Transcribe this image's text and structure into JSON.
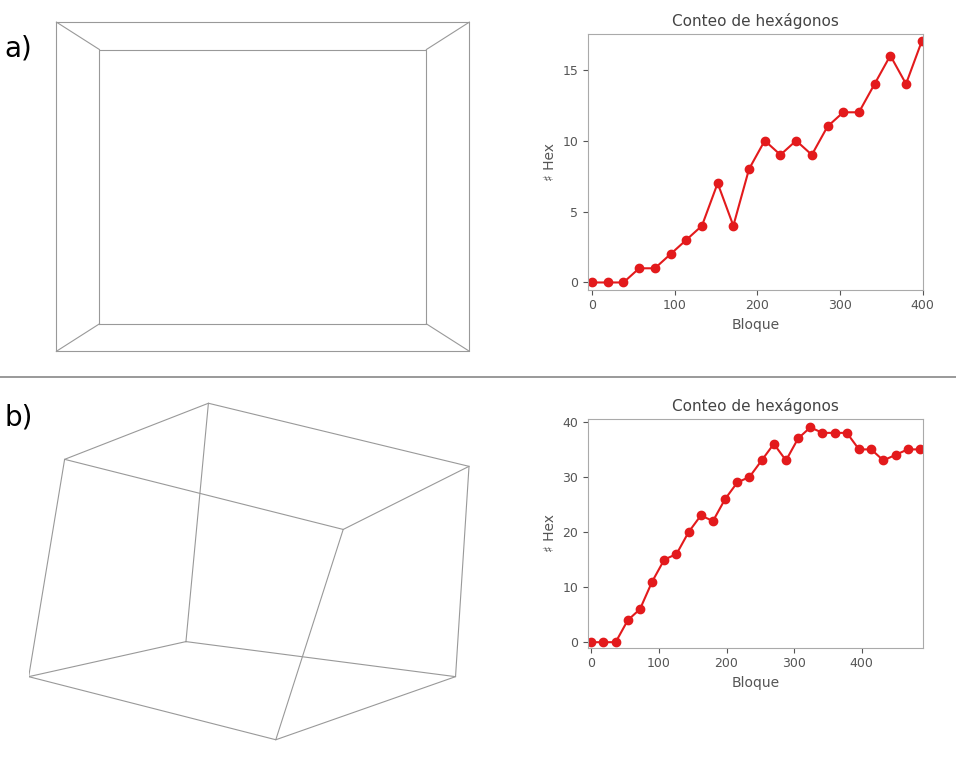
{
  "chart_data": [
    {
      "type": "line",
      "annotations": [
        "a)"
      ],
      "title": "Conteo de hexágonos",
      "x_label": "Bloque",
      "y_label": "♯ Hex",
      "x": [
        0,
        19,
        38,
        57,
        76,
        95,
        114,
        133,
        152,
        171,
        190,
        209,
        228,
        247,
        266,
        285,
        304,
        323,
        342,
        361,
        380,
        399
      ],
      "values": [
        0,
        0,
        0,
        1,
        1,
        2,
        3,
        4,
        7,
        4,
        8,
        10,
        9,
        10,
        9,
        11,
        12,
        12,
        14,
        16,
        14,
        17
      ],
      "xlim": [
        -5,
        400
      ],
      "ylim": [
        -0.5,
        17.5
      ],
      "xticks": [
        0,
        100,
        200,
        300,
        400
      ],
      "yticks": [
        0,
        5,
        10,
        15
      ],
      "color": "#e31a1c",
      "marker": "circle",
      "line_style": "solid",
      "grid": false
    },
    {
      "type": "line",
      "annotations": [
        "b)"
      ],
      "title": "Conteo de hexágonos",
      "x_label": "Bloque",
      "y_label": "♯ Hex",
      "x": [
        0,
        18,
        36,
        54,
        72,
        90,
        108,
        126,
        144,
        162,
        180,
        198,
        216,
        234,
        252,
        270,
        288,
        306,
        324,
        342,
        360,
        378,
        396,
        414,
        432,
        450,
        468,
        486
      ],
      "values": [
        0,
        0,
        0,
        4,
        6,
        11,
        15,
        16,
        20,
        23,
        22,
        26,
        29,
        30,
        33,
        36,
        33,
        37,
        39,
        38,
        38,
        38,
        35,
        35,
        33,
        34,
        35,
        35
      ],
      "xlim": [
        -5,
        490
      ],
      "ylim": [
        -1,
        40.5
      ],
      "xticks": [
        0,
        100,
        200,
        300,
        400
      ],
      "yticks": [
        0,
        10,
        20,
        30,
        40
      ],
      "color": "#e31a1c",
      "marker": "circle",
      "line_style": "solid",
      "grid": false
    }
  ]
}
